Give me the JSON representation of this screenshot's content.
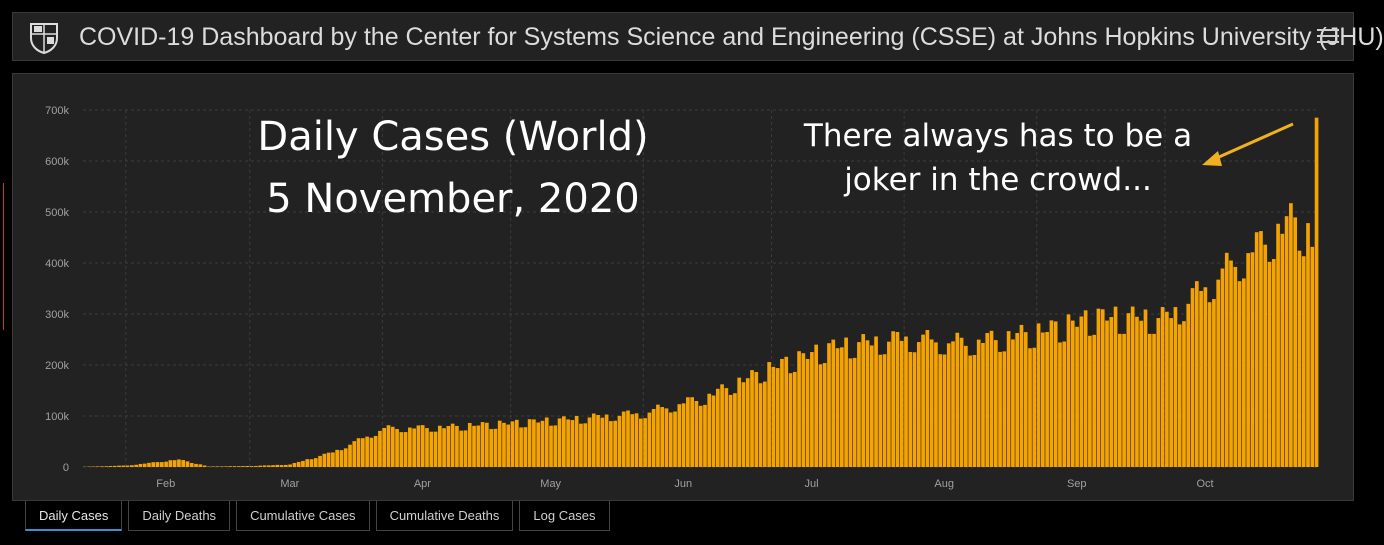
{
  "header": {
    "title": "COVID-19 Dashboard by the Center for Systems Science and Engineering (CSSE) at Johns Hopkins University (JHU)",
    "logo_icon": "university-shield-icon",
    "menu_icon": "hamburger-menu-icon"
  },
  "annotation": {
    "title_line1": "Daily Cases (World)",
    "title_line2": "5 November, 2020",
    "note_line1": "There always has to be a",
    "note_line2": "joker in the crowd...",
    "arrow_color": "#f0b020"
  },
  "tabs": [
    {
      "label": "Daily Cases",
      "active": true
    },
    {
      "label": "Daily Deaths",
      "active": false
    },
    {
      "label": "Cumulative Cases",
      "active": false
    },
    {
      "label": "Cumulative Deaths",
      "active": false
    },
    {
      "label": "Log Cases",
      "active": false
    }
  ],
  "colors": {
    "bar": "#f5a300",
    "background": "#222222",
    "grid": "#3c3c3c",
    "tab_active_underline": "#3a8fd6"
  },
  "chart_data": {
    "type": "bar",
    "title": "",
    "xlabel": "",
    "ylabel": "",
    "ylim": [
      0,
      700000
    ],
    "yticks": [
      0,
      100000,
      200000,
      300000,
      400000,
      500000,
      600000,
      700000
    ],
    "ytick_labels": [
      "0",
      "100k",
      "200k",
      "300k",
      "400k",
      "500k",
      "600k",
      "700k"
    ],
    "x_range": [
      "2020-01-22",
      "2020-11-05"
    ],
    "xtick_labels": [
      {
        "label": "Feb",
        "date": "2020-02-01"
      },
      {
        "label": "Mar",
        "date": "2020-03-01"
      },
      {
        "label": "Apr",
        "date": "2020-04-01"
      },
      {
        "label": "May",
        "date": "2020-05-01"
      },
      {
        "label": "Jun",
        "date": "2020-06-01"
      },
      {
        "label": "Jul",
        "date": "2020-07-01"
      },
      {
        "label": "Aug",
        "date": "2020-08-01"
      },
      {
        "label": "Sep",
        "date": "2020-09-01"
      },
      {
        "label": "Oct",
        "date": "2020-10-01"
      }
    ],
    "grid": true,
    "monthly_reference": [
      {
        "date": "2020-01-22",
        "value": 500
      },
      {
        "date": "2020-02-01",
        "value": 3000
      },
      {
        "date": "2020-02-13",
        "value": 15000
      },
      {
        "date": "2020-02-20",
        "value": 1000
      },
      {
        "date": "2020-03-01",
        "value": 2000
      },
      {
        "date": "2020-03-10",
        "value": 5000
      },
      {
        "date": "2020-03-20",
        "value": 30000
      },
      {
        "date": "2020-04-01",
        "value": 78000
      },
      {
        "date": "2020-04-15",
        "value": 80000
      },
      {
        "date": "2020-05-01",
        "value": 88000
      },
      {
        "date": "2020-05-15",
        "value": 96000
      },
      {
        "date": "2020-06-01",
        "value": 110000
      },
      {
        "date": "2020-06-15",
        "value": 140000
      },
      {
        "date": "2020-07-01",
        "value": 200000
      },
      {
        "date": "2020-07-15",
        "value": 240000
      },
      {
        "date": "2020-08-01",
        "value": 260000
      },
      {
        "date": "2020-08-15",
        "value": 250000
      },
      {
        "date": "2020-09-01",
        "value": 270000
      },
      {
        "date": "2020-09-15",
        "value": 300000
      },
      {
        "date": "2020-10-01",
        "value": 300000
      },
      {
        "date": "2020-10-15",
        "value": 400000
      },
      {
        "date": "2020-10-31",
        "value": 500000
      },
      {
        "date": "2020-11-04",
        "value": 450000
      },
      {
        "date": "2020-11-05",
        "value": 685000
      }
    ]
  }
}
